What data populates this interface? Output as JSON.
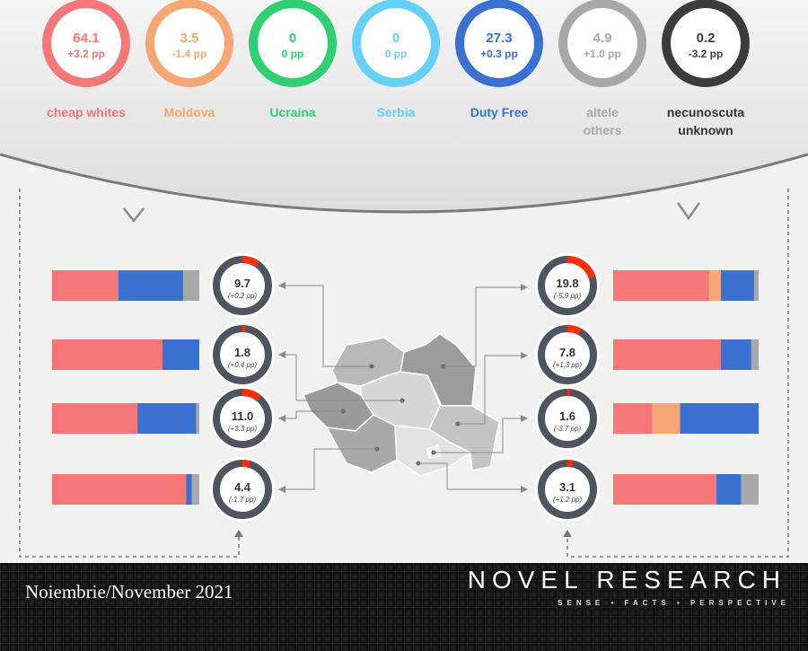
{
  "colors": {
    "cheap_whites": "#f57777",
    "moldova": "#f7a773",
    "ucraina": "#2fcf73",
    "serbia": "#67d0f7",
    "duty_free": "#3a71d1",
    "others": "#a8a8a8",
    "unknown": "#3c3c3c",
    "ring_track": "#4e5560",
    "ring_accent": "#ff2e06"
  },
  "chart_data": {
    "type": "bar",
    "categories_summary": [
      {
        "key": "cheap_whites",
        "value": "64.1",
        "change": "+3.2 pp",
        "label": [
          "cheap whites"
        ]
      },
      {
        "key": "moldova",
        "value": "3.5",
        "change": "-1.4 pp",
        "label": [
          "Moldova"
        ]
      },
      {
        "key": "ucraina",
        "value": "0",
        "change": "0 pp",
        "label": [
          "Ucraina"
        ]
      },
      {
        "key": "serbia",
        "value": "0",
        "change": "0 pp",
        "label": [
          "Serbia"
        ]
      },
      {
        "key": "duty_free",
        "value": "27.3",
        "change": "+0.3 pp",
        "label": [
          "Duty Free"
        ]
      },
      {
        "key": "others",
        "value": "4.9",
        "change": "+1.0 pp",
        "label": [
          "altele",
          "others"
        ]
      },
      {
        "key": "unknown",
        "value": "0.2",
        "change": "-3.2 pp",
        "label": [
          "necunoscuta",
          "unknown"
        ]
      }
    ],
    "regions_left": [
      {
        "value": "9.7",
        "change": "(+0.2 pp)",
        "share": 9.7,
        "bar": [
          {
            "key": "cheap_whites",
            "v": 45
          },
          {
            "key": "duty_free",
            "v": 44
          },
          {
            "key": "others",
            "v": 11
          }
        ]
      },
      {
        "value": "1.8",
        "change": "(+0.4 pp)",
        "share": 1.8,
        "bar": [
          {
            "key": "cheap_whites",
            "v": 75
          },
          {
            "key": "duty_free",
            "v": 25
          }
        ]
      },
      {
        "value": "11.0",
        "change": "(+3.3 pp)",
        "share": 11.0,
        "bar": [
          {
            "key": "cheap_whites",
            "v": 58
          },
          {
            "key": "duty_free",
            "v": 40
          },
          {
            "key": "others",
            "v": 2
          }
        ]
      },
      {
        "value": "4.4",
        "change": "(-1.7 pp)",
        "share": 4.4,
        "bar": [
          {
            "key": "cheap_whites",
            "v": 91
          },
          {
            "key": "duty_free",
            "v": 4
          },
          {
            "key": "others",
            "v": 5
          }
        ]
      }
    ],
    "regions_right": [
      {
        "value": "19.8",
        "change": "(-5.9 pp)",
        "share": 19.8,
        "bar": [
          {
            "key": "cheap_whites",
            "v": 66
          },
          {
            "key": "moldova",
            "v": 8
          },
          {
            "key": "duty_free",
            "v": 23
          },
          {
            "key": "others",
            "v": 3
          }
        ]
      },
      {
        "value": "7.8",
        "change": "(+1.3 pp)",
        "share": 7.8,
        "bar": [
          {
            "key": "cheap_whites",
            "v": 74
          },
          {
            "key": "duty_free",
            "v": 21
          },
          {
            "key": "others",
            "v": 5
          }
        ]
      },
      {
        "value": "1.6",
        "change": "(-3.7 pp)",
        "share": 1.6,
        "bar": [
          {
            "key": "cheap_whites",
            "v": 27
          },
          {
            "key": "moldova",
            "v": 19
          },
          {
            "key": "duty_free",
            "v": 54
          }
        ]
      },
      {
        "value": "3.1",
        "change": "(+1.2 pp)",
        "share": 3.1,
        "bar": [
          {
            "key": "cheap_whites",
            "v": 71
          },
          {
            "key": "duty_free",
            "v": 17
          },
          {
            "key": "others",
            "v": 12
          }
        ]
      }
    ]
  },
  "footer": {
    "date": "Noiembrie/November 2021",
    "brand": "NOVEL RESEARCH",
    "tagline": "SENSE • FACTS • PERSPECTIVE"
  }
}
